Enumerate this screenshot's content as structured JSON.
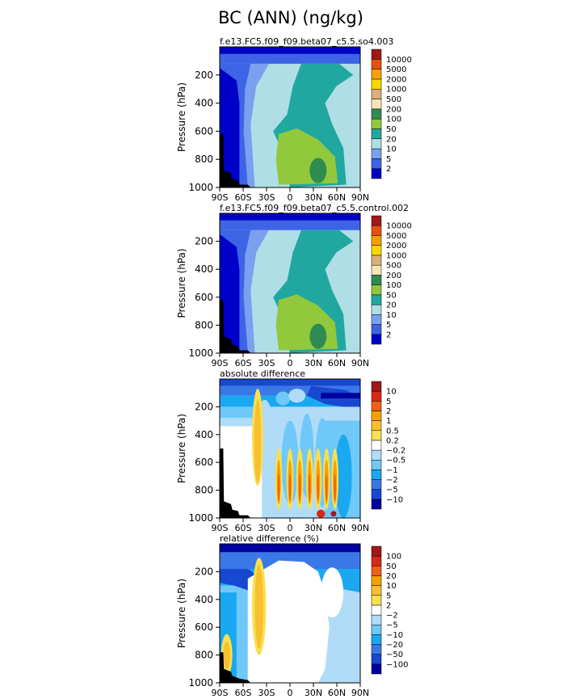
{
  "figure": {
    "title": "BC (ANN) (ng/kg)"
  },
  "colors": {
    "bc_scale": [
      "#0000c8",
      "#3e64e6",
      "#7aa0f0",
      "#b0dee6",
      "#20a8a0",
      "#92c83c",
      "#2e8c50",
      "#f8e4b8",
      "#d8b078",
      "#f8d800",
      "#f8a000",
      "#e85010",
      "#a01818"
    ],
    "diff_scale": [
      "#0000a0",
      "#1848d0",
      "#3a78e8",
      "#1aa8f0",
      "#70c8f8",
      "#b0dcf8",
      "#ffffff",
      "#f8e050",
      "#f8c030",
      "#f8a000",
      "#f06018",
      "#d82818",
      "#a01818"
    ],
    "land_mask": "#000000"
  },
  "chart_data": [
    {
      "type": "heatmap",
      "subtitle": "f.e13.FC5.f09_f09.beta07_c5.5.so4.003",
      "ylabel": "Pressure (hPa)",
      "xticks": [
        "90S",
        "60S",
        "30S",
        "0",
        "30N",
        "60N",
        "90N"
      ],
      "yticks": [
        "200",
        "400",
        "600",
        "800",
        "1000"
      ],
      "ylim": [
        1000,
        0
      ],
      "xlim": [
        -90,
        90
      ],
      "colorbar_labels": [
        "2",
        "5",
        "10",
        "20",
        "50",
        "100",
        "200",
        "500",
        "1000",
        "2000",
        "5000",
        "10000"
      ],
      "features": [
        {
          "region": "stratosphere/top band",
          "level": "<2"
        },
        {
          "region": "southern high latitudes",
          "level": "<2"
        },
        {
          "region": "tropical and northern mid troposphere",
          "level": "20-50"
        },
        {
          "region": "northern lower troposphere",
          "level": "50-100"
        },
        {
          "region": "northern boundary layer near 45N",
          "level": "100-200"
        }
      ]
    },
    {
      "type": "heatmap",
      "subtitle": "f.e13.FC5.f09_f09.beta07_c5.5.control.002",
      "ylabel": "Pressure (hPa)",
      "xticks": [
        "90S",
        "60S",
        "30S",
        "0",
        "30N",
        "60N",
        "90N"
      ],
      "yticks": [
        "200",
        "400",
        "600",
        "800",
        "1000"
      ],
      "ylim": [
        1000,
        0
      ],
      "xlim": [
        -90,
        90
      ],
      "colorbar_labels": [
        "2",
        "5",
        "10",
        "20",
        "50",
        "100",
        "200",
        "500",
        "1000",
        "2000",
        "5000",
        "10000"
      ],
      "features": [
        {
          "region": "stratosphere/top band",
          "level": "<2"
        },
        {
          "region": "southern high latitudes",
          "level": "<2"
        },
        {
          "region": "tropical and northern mid troposphere",
          "level": "20-50"
        },
        {
          "region": "northern lower troposphere",
          "level": "50-100"
        },
        {
          "region": "northern boundary layer near 45N",
          "level": "100-200"
        }
      ]
    },
    {
      "type": "heatmap",
      "subtitle": "absolute difference",
      "ylabel": "Pressure (hPa)",
      "xticks": [
        "90S",
        "60S",
        "30S",
        "0",
        "30N",
        "60N",
        "90N"
      ],
      "yticks": [
        "200",
        "400",
        "600",
        "800",
        "1000"
      ],
      "ylim": [
        1000,
        0
      ],
      "xlim": [
        -90,
        90
      ],
      "colorbar_labels": [
        "10",
        "5",
        "2",
        "1",
        "0.5",
        "0.2",
        "−0.2",
        "−0.5",
        "−1",
        "−2",
        "−5",
        "−10"
      ],
      "features": [
        {
          "region": "upper troposphere band",
          "level": "-5 to -10"
        },
        {
          "region": "southern troposphere",
          "level": "-0.2 to 0.2"
        },
        {
          "region": "35S-40S column",
          "level": "0.2 to 2"
        },
        {
          "region": "tropical/NH columns",
          "level": "-2 to 5"
        }
      ]
    },
    {
      "type": "heatmap",
      "subtitle": "relative difference (%)",
      "ylabel": "Pressure (hPa)",
      "xticks": [
        "90S",
        "60S",
        "30S",
        "0",
        "30N",
        "60N",
        "90N"
      ],
      "yticks": [
        "200",
        "400",
        "600",
        "800",
        "1000"
      ],
      "ylim": [
        1000,
        0
      ],
      "xlim": [
        -90,
        90
      ],
      "colorbar_labels": [
        "100",
        "50",
        "20",
        "10",
        "5",
        "2",
        "−2",
        "−5",
        "−10",
        "−20",
        "−50",
        "−100"
      ],
      "features": [
        {
          "region": "upper troposphere band",
          "level": "-10 to -50"
        },
        {
          "region": "southern high latitudes",
          "level": "-5 to -20"
        },
        {
          "region": "35S-45S column",
          "level": "2 to 10"
        },
        {
          "region": "tropics/NH mid troposphere",
          "level": "-2 to 2"
        }
      ]
    }
  ]
}
